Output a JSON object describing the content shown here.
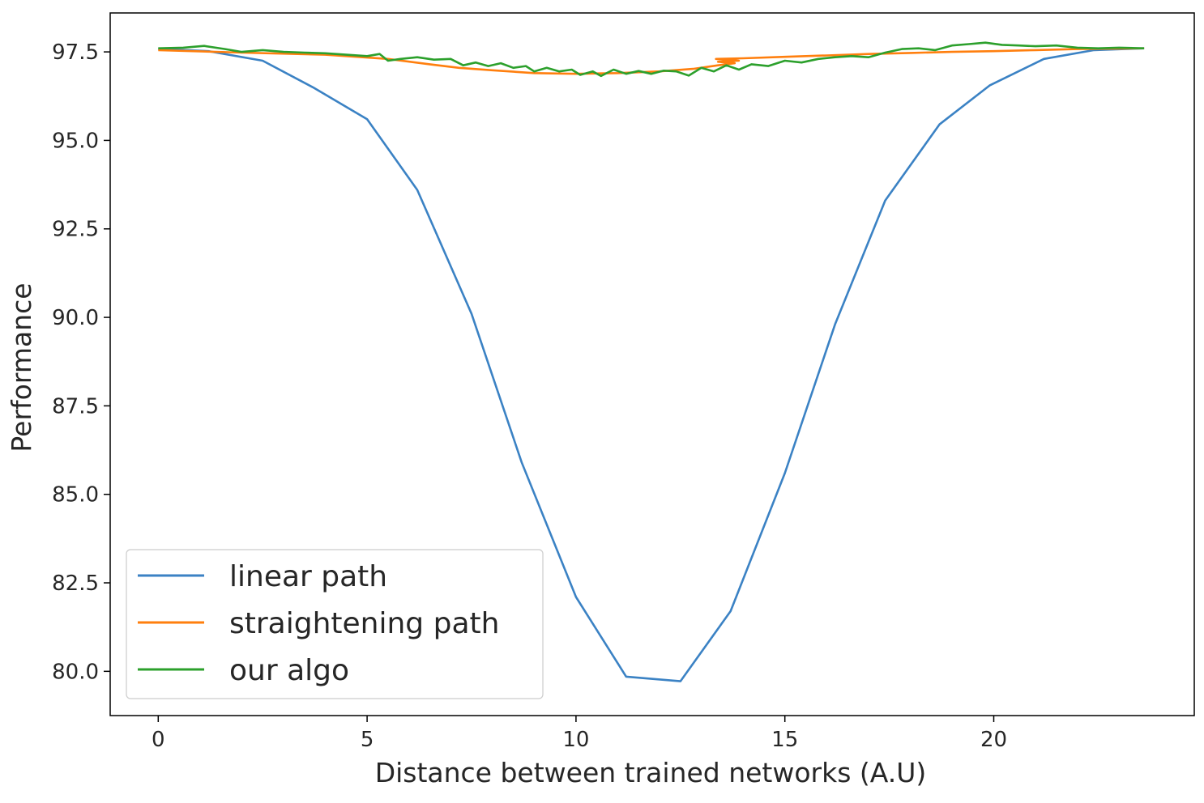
{
  "chart_data": {
    "type": "line",
    "title": "",
    "xlabel": "Distance between trained networks (A.U)",
    "ylabel": "Performance",
    "xlim": [
      -1.15,
      24.8
    ],
    "ylim": [
      78.75,
      98.6
    ],
    "xticks": [
      0,
      5,
      10,
      15,
      20
    ],
    "xtick_labels": [
      "0",
      "5",
      "10",
      "15",
      "20"
    ],
    "yticks": [
      80.0,
      82.5,
      85.0,
      87.5,
      90.0,
      92.5,
      95.0,
      97.5
    ],
    "ytick_labels": [
      "80.0",
      "82.5",
      "85.0",
      "87.5",
      "90.0",
      "92.5",
      "95.0",
      "97.5"
    ],
    "grid": false,
    "legend_position": "lower-left",
    "series": [
      {
        "name": "linear path",
        "color": "#3b82c4",
        "points": [
          [
            0.0,
            97.58
          ],
          [
            1.2,
            97.52
          ],
          [
            2.5,
            97.25
          ],
          [
            3.7,
            96.5
          ],
          [
            5.0,
            95.6
          ],
          [
            6.2,
            93.6
          ],
          [
            7.5,
            90.1
          ],
          [
            8.7,
            85.9
          ],
          [
            10.0,
            82.1
          ],
          [
            11.2,
            79.85
          ],
          [
            12.5,
            79.72
          ],
          [
            13.7,
            81.7
          ],
          [
            15.0,
            85.6
          ],
          [
            16.2,
            89.8
          ],
          [
            17.4,
            93.3
          ],
          [
            18.7,
            95.45
          ],
          [
            19.9,
            96.55
          ],
          [
            21.2,
            97.3
          ],
          [
            22.4,
            97.55
          ],
          [
            23.6,
            97.6
          ]
        ]
      },
      {
        "name": "straightening path",
        "color": "#ff7f0e",
        "points": [
          [
            0.0,
            97.55
          ],
          [
            2.0,
            97.48
          ],
          [
            4.0,
            97.42
          ],
          [
            5.5,
            97.3
          ],
          [
            6.5,
            97.15
          ],
          [
            7.2,
            97.05
          ],
          [
            8.0,
            96.98
          ],
          [
            9.0,
            96.9
          ],
          [
            10.0,
            96.88
          ],
          [
            11.0,
            96.9
          ],
          [
            12.0,
            96.95
          ],
          [
            12.8,
            97.02
          ],
          [
            13.4,
            97.12
          ],
          [
            13.8,
            97.18
          ],
          [
            13.4,
            97.22
          ],
          [
            13.9,
            97.25
          ],
          [
            13.35,
            97.3
          ],
          [
            14.0,
            97.32
          ],
          [
            15.0,
            97.36
          ],
          [
            16.0,
            97.4
          ],
          [
            17.0,
            97.44
          ],
          [
            18.0,
            97.47
          ],
          [
            19.0,
            97.5
          ],
          [
            20.0,
            97.52
          ],
          [
            21.0,
            97.55
          ],
          [
            22.0,
            97.58
          ],
          [
            23.6,
            97.6
          ]
        ]
      },
      {
        "name": "our algo",
        "color": "#2ca02c",
        "points": [
          [
            0.0,
            97.6
          ],
          [
            0.6,
            97.62
          ],
          [
            1.1,
            97.67
          ],
          [
            1.6,
            97.58
          ],
          [
            2.0,
            97.5
          ],
          [
            2.5,
            97.55
          ],
          [
            3.0,
            97.5
          ],
          [
            3.5,
            97.48
          ],
          [
            4.0,
            97.46
          ],
          [
            4.5,
            97.42
          ],
          [
            5.0,
            97.38
          ],
          [
            5.3,
            97.44
          ],
          [
            5.5,
            97.25
          ],
          [
            5.8,
            97.3
          ],
          [
            6.2,
            97.35
          ],
          [
            6.6,
            97.28
          ],
          [
            7.0,
            97.3
          ],
          [
            7.3,
            97.12
          ],
          [
            7.6,
            97.2
          ],
          [
            7.9,
            97.1
          ],
          [
            8.2,
            97.18
          ],
          [
            8.5,
            97.05
          ],
          [
            8.8,
            97.1
          ],
          [
            9.0,
            96.95
          ],
          [
            9.3,
            97.05
          ],
          [
            9.6,
            96.95
          ],
          [
            9.9,
            97.0
          ],
          [
            10.1,
            96.85
          ],
          [
            10.4,
            96.95
          ],
          [
            10.6,
            96.82
          ],
          [
            10.9,
            97.0
          ],
          [
            11.2,
            96.88
          ],
          [
            11.5,
            96.96
          ],
          [
            11.8,
            96.88
          ],
          [
            12.1,
            96.97
          ],
          [
            12.4,
            96.95
          ],
          [
            12.7,
            96.83
          ],
          [
            13.0,
            97.05
          ],
          [
            13.3,
            96.95
          ],
          [
            13.6,
            97.12
          ],
          [
            13.9,
            97.0
          ],
          [
            14.2,
            97.15
          ],
          [
            14.6,
            97.1
          ],
          [
            15.0,
            97.25
          ],
          [
            15.4,
            97.2
          ],
          [
            15.8,
            97.3
          ],
          [
            16.2,
            97.35
          ],
          [
            16.6,
            97.38
          ],
          [
            17.0,
            97.35
          ],
          [
            17.4,
            97.48
          ],
          [
            17.8,
            97.58
          ],
          [
            18.2,
            97.6
          ],
          [
            18.6,
            97.55
          ],
          [
            19.0,
            97.68
          ],
          [
            19.4,
            97.72
          ],
          [
            19.8,
            97.76
          ],
          [
            20.2,
            97.7
          ],
          [
            20.6,
            97.68
          ],
          [
            21.0,
            97.66
          ],
          [
            21.5,
            97.68
          ],
          [
            22.0,
            97.62
          ],
          [
            22.5,
            97.6
          ],
          [
            23.0,
            97.62
          ],
          [
            23.6,
            97.6
          ]
        ]
      }
    ]
  }
}
